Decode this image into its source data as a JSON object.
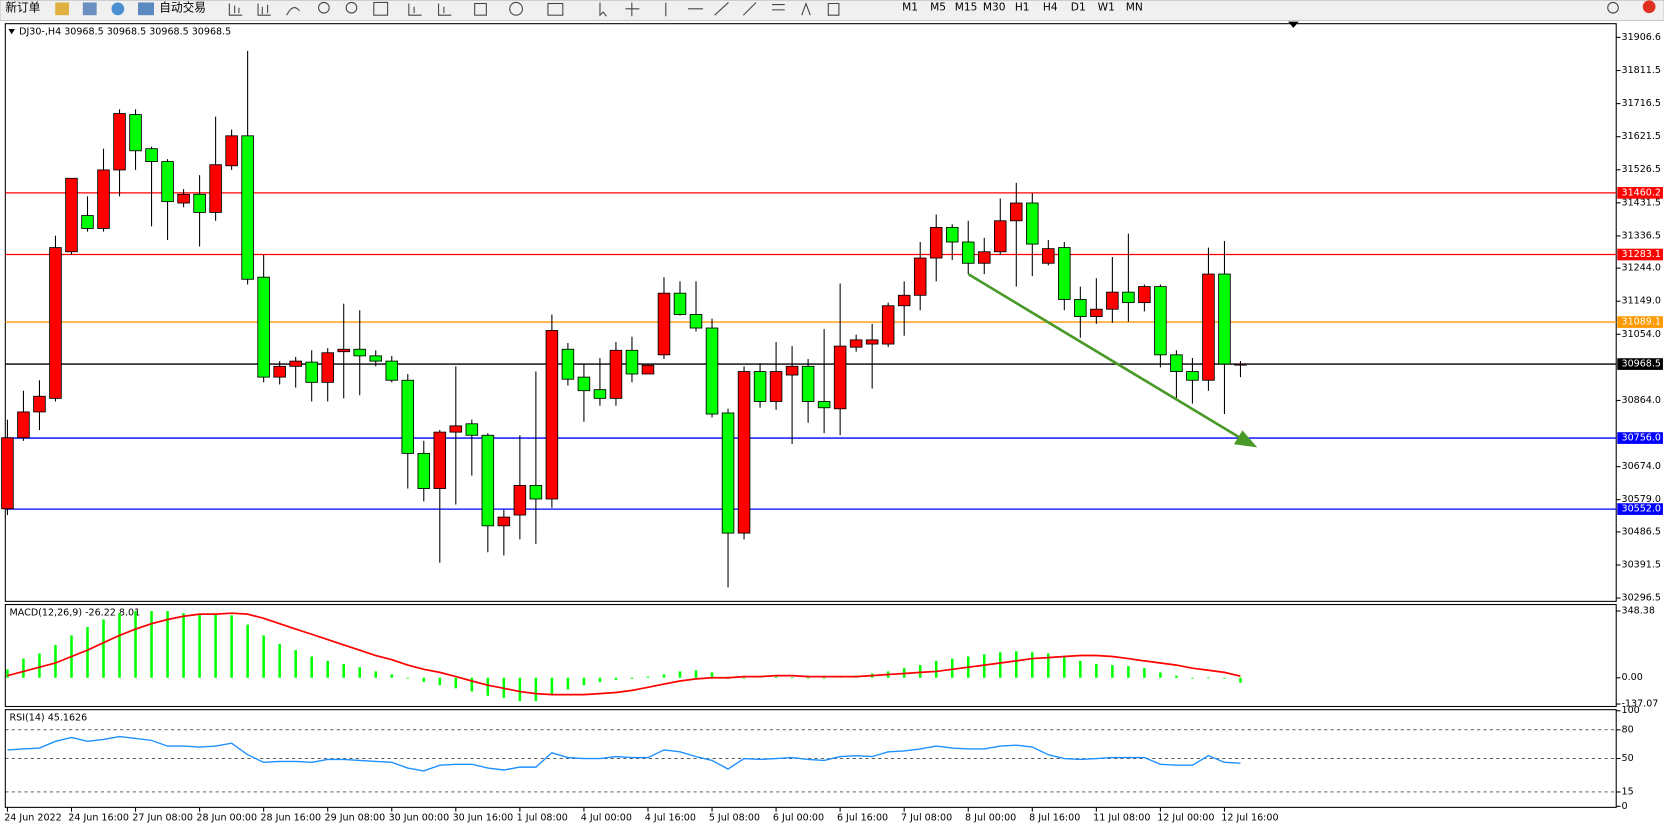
{
  "toolbar": {
    "buttons": [
      "新订单",
      "自动交易"
    ],
    "timeframes": [
      "M1",
      "M5",
      "M15",
      "M30",
      "H1",
      "H4",
      "D1",
      "W1",
      "MN"
    ]
  },
  "chart_data": [
    {
      "type": "candlestick",
      "title": "DJ30-,H4  30968.5 30968.5 30968.5 30968.5",
      "categories": [
        "24 Jun 2022",
        null,
        null,
        null,
        "24 Jun 16:00",
        null,
        null,
        null,
        "27 Jun 08:00",
        null,
        null,
        null,
        "28 Jun 00:00",
        null,
        null,
        null,
        "28 Jun 16:00",
        null,
        null,
        null,
        "29 Jun 08:00",
        null,
        null,
        null,
        "30 Jun 00:00",
        null,
        null,
        null,
        "30 Jun 16:00",
        null,
        null,
        null,
        "1 Jul 08:00",
        null,
        null,
        null,
        "4 Jul 00:00",
        null,
        null,
        null,
        "4 Jul 16:00",
        null,
        null,
        null,
        "5 Jul 08:00",
        null,
        null,
        null,
        "6 Jul 00:00",
        null,
        null,
        null,
        "6 Jul 16:00",
        null,
        null,
        null,
        "7 Jul 08:00",
        null,
        null,
        null,
        "8 Jul 00:00",
        null,
        null,
        null,
        "8 Jul 16:00",
        null,
        null,
        null,
        "11 Jul 08:00",
        null,
        null,
        null,
        "12 Jul 00:00",
        null,
        null,
        null,
        "12 Jul 16:00",
        null
      ],
      "open": [
        30553,
        30757,
        30831,
        30870,
        31291,
        31395,
        31358,
        31526,
        31685,
        31587,
        31550,
        31431,
        31456,
        31404,
        31538,
        31624,
        31218,
        30931,
        30962,
        30974,
        30916,
        31004,
        31011,
        30992,
        30977,
        30922,
        30712,
        30611,
        30773,
        30797,
        30764,
        30504,
        30535,
        30620,
        30581,
        31011,
        30931,
        30895,
        30870,
        31008,
        30940,
        30995,
        31172,
        31111,
        31072,
        30828,
        30483,
        30947,
        30861,
        30937,
        30962,
        30861,
        30840,
        31017,
        31026,
        31026,
        31136,
        31166,
        31273,
        31361,
        31319,
        31258,
        31291,
        31380,
        31431,
        31258,
        31303,
        31154,
        31105,
        31126,
        31175,
        31145,
        31191,
        30995,
        30947,
        30922,
        31227,
        30968.5
      ],
      "high": [
        30809,
        30892,
        30922,
        31337,
        31502,
        31450,
        31587,
        31700,
        31700,
        31593,
        31557,
        31471,
        31511,
        31679,
        31642,
        31868,
        31282,
        30977,
        30989,
        31008,
        31014,
        31142,
        31123,
        31008,
        30992,
        30940,
        30748,
        30779,
        30962,
        30809,
        30770,
        30550,
        30764,
        30947,
        31111,
        31029,
        30968,
        30986,
        31032,
        31047,
        30968,
        31218,
        31206,
        31206,
        31099,
        30840,
        30962,
        30971,
        31032,
        31020,
        30983,
        31069,
        31200,
        31053,
        31084,
        31145,
        31206,
        31319,
        31398,
        31370,
        31380,
        31331,
        31444,
        31489,
        31459,
        31325,
        31319,
        31191,
        31215,
        31276,
        31343,
        31197,
        31197,
        31008,
        30986,
        31303,
        31322,
        30977
      ],
      "low": [
        30535,
        30748,
        30779,
        30861,
        31282,
        31349,
        31349,
        31450,
        31526,
        31364,
        31325,
        31419,
        31306,
        31380,
        31526,
        31197,
        30916,
        30910,
        30901,
        30861,
        30861,
        30870,
        30879,
        30962,
        30916,
        30611,
        30574,
        30398,
        30565,
        30648,
        30428,
        30419,
        30465,
        30452,
        30556,
        30907,
        30803,
        30849,
        30849,
        30916,
        30940,
        30983,
        31108,
        31062,
        30815,
        30327,
        30465,
        30843,
        30837,
        30739,
        30800,
        30770,
        30764,
        31004,
        30898,
        31017,
        31050,
        31123,
        31206,
        31267,
        31227,
        31227,
        31282,
        31191,
        31221,
        31252,
        31123,
        31044,
        31084,
        31087,
        31090,
        31120,
        30959,
        30870,
        30855,
        30892,
        30825,
        30931
      ],
      "close": [
        30757,
        30831,
        30876,
        31303,
        31502,
        31358,
        31526,
        31688,
        31581,
        31550,
        31435,
        31456,
        31404,
        31541,
        31624,
        31212,
        30931,
        30962,
        30977,
        30916,
        31001,
        31011,
        30992,
        30977,
        30922,
        30712,
        30611,
        30773,
        30791,
        30764,
        30504,
        30529,
        30620,
        30581,
        31065,
        30925,
        30892,
        30870,
        31008,
        30940,
        30965,
        31172,
        31111,
        31072,
        30825,
        30483,
        30947,
        30861,
        30947,
        30962,
        30861,
        30843,
        31020,
        31038,
        31038,
        31136,
        31166,
        31273,
        31361,
        31319,
        31258,
        31291,
        31380,
        31431,
        31313,
        31300,
        31154,
        31105,
        31126,
        31175,
        31145,
        31191,
        30995,
        30947,
        30922,
        31227,
        30968.5,
        30968.5
      ],
      "up_color": "#ff0000",
      "down_color": "#00ff00",
      "ylim": [
        30287,
        31946
      ],
      "yticks": [
        31906.6,
        31811.5,
        31716.5,
        31621.5,
        31526.5,
        31431.5,
        31336.5,
        {
          "value": 31244,
          "label": "31244.0"
        },
        {
          "value": 31149,
          "label": "31149.0"
        },
        {
          "value": 31054,
          "label": "31054.0"
        },
        {
          "value": 30864,
          "label": "30864.0"
        },
        {
          "value": 30674,
          "label": "30674.0"
        },
        {
          "value": 30579,
          "label": "30579.0"
        },
        30486.5,
        30391.5,
        30296.5
      ],
      "hlines": [
        {
          "value": 31460.2,
          "color": "#ff0000"
        },
        {
          "value": 31283.1,
          "color": "#ff0000"
        },
        {
          "value": 31089.1,
          "color": "#ff9900"
        },
        {
          "value": 30968.5,
          "color": "#000000"
        },
        {
          "value": 30756,
          "label": "30756.0",
          "color": "#0000ff"
        },
        {
          "value": 30552,
          "label": "30552.0",
          "color": "#0000ff"
        }
      ]
    },
    {
      "type": "macd",
      "title": "MACD(12,26,9) -26.22 8.01",
      "histogram": {
        "color": "#00ff00",
        "values": [
          44,
          100,
          127,
          171,
          221,
          265,
          304,
          337,
          348,
          348,
          348,
          337,
          332,
          332,
          326,
          277,
          221,
          177,
          144,
          111,
          88,
          72,
          55,
          33,
          17,
          0,
          -22,
          -39,
          -55,
          -72,
          -94,
          -105,
          -122,
          -122,
          -88,
          -61,
          -39,
          -22,
          -11,
          -6,
          6,
          17,
          33,
          39,
          28,
          -6,
          -3,
          6,
          6,
          2,
          0,
          0,
          6,
          11,
          22,
          33,
          50,
          66,
          88,
          100,
          111,
          122,
          133,
          138,
          133,
          127,
          111,
          88,
          72,
          66,
          61,
          50,
          28,
          11,
          0,
          2,
          -3,
          -26.22
        ]
      },
      "signal": {
        "color": "#ff0000",
        "values": [
          11,
          33,
          55,
          77,
          111,
          144,
          183,
          221,
          254,
          282,
          304,
          321,
          332,
          332,
          337,
          332,
          310,
          282,
          254,
          227,
          199,
          171,
          144,
          116,
          94,
          66,
          44,
          28,
          6,
          -17,
          -39,
          -55,
          -72,
          -83,
          -88,
          -88,
          -88,
          -83,
          -77,
          -66,
          -50,
          -33,
          -17,
          -6,
          0,
          0,
          6,
          6,
          11,
          11,
          6,
          6,
          6,
          6,
          11,
          17,
          22,
          28,
          33,
          44,
          55,
          66,
          77,
          88,
          100,
          105,
          111,
          116,
          116,
          111,
          100,
          88,
          77,
          66,
          50,
          39,
          28,
          8.01
        ]
      },
      "ylim": [
        -150,
        382
      ],
      "yticks": [
        348.38,
        {
          "value": 0,
          "label": "0.00"
        },
        -137.07
      ]
    },
    {
      "type": "line",
      "title": "RSI(14) 45.1626",
      "color": "#1e90ff",
      "values": [
        59,
        60,
        61,
        68,
        72,
        68,
        70,
        73,
        71,
        69,
        63,
        63,
        62,
        63,
        66,
        54,
        46,
        47,
        47,
        46,
        49,
        49,
        48,
        47,
        46,
        40,
        37,
        43,
        44,
        44,
        40,
        38,
        41,
        41,
        56,
        51,
        50,
        50,
        52,
        51,
        51,
        59,
        57,
        52,
        48,
        39,
        50,
        49,
        50,
        51,
        49,
        48,
        52,
        53,
        52,
        57,
        58,
        60,
        63,
        61,
        60,
        60,
        63,
        64,
        62,
        54,
        50,
        49,
        50,
        51,
        51,
        51,
        44,
        43,
        43,
        53,
        46,
        45.1626
      ],
      "ylim": [
        0,
        100
      ],
      "yticks": [
        100,
        80,
        50,
        15,
        0
      ]
    }
  ]
}
